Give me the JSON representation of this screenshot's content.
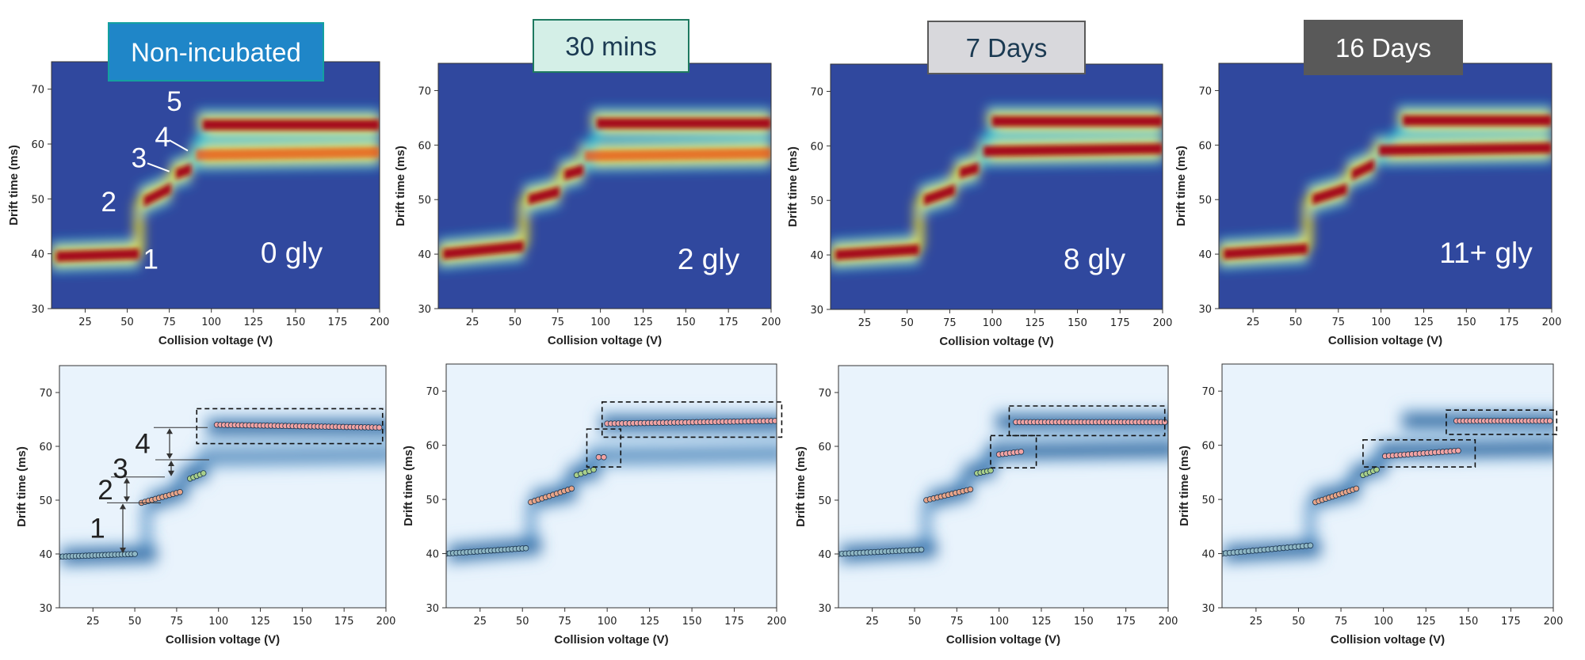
{
  "figure": {
    "colors": {
      "heat_background": "#30489e",
      "heat_mid": "#1ec8dc",
      "heat_high": "#f0e632",
      "heat_peak": "#a50f1e",
      "blue_background": "#e9f3fc",
      "blue_dark": "#0a4b8c",
      "dashed_box": "#111111"
    }
  },
  "chart_data": [
    {
      "type": "heatmap",
      "row": "top",
      "title": "Non-incubated",
      "title_style": {
        "fill": "#1f86c8",
        "stroke": "#14a0a0",
        "text": "#ffffff"
      },
      "glycan_label": "0 gly",
      "xlabel": "Collision voltage (V)",
      "ylabel": "Drift time (ms)",
      "xlim": [
        5,
        200
      ],
      "ylim": [
        30,
        75
      ],
      "xticks": [
        "25",
        "50",
        "75",
        "100",
        "125",
        "150",
        "175",
        "200"
      ],
      "yticks": [
        "30",
        "40",
        "50",
        "60",
        "70"
      ],
      "ytick_values": [
        30,
        40,
        50,
        60,
        70
      ],
      "xtick_values": [
        25,
        50,
        75,
        100,
        125,
        150,
        175,
        200
      ],
      "features": [
        {
          "state": 1,
          "x_start": 5,
          "x_end": 57,
          "drift_start": 39.5,
          "drift_end": 40.0
        },
        {
          "state": 2,
          "x_start": 57,
          "x_end": 76,
          "drift_start": 49.5,
          "drift_end": 52.0
        },
        {
          "state": 3,
          "x_start": 76,
          "x_end": 88,
          "drift_start": 54.5,
          "drift_end": 55.5
        },
        {
          "state": 4,
          "x_start": 88,
          "x_end": 200,
          "drift_start": 58.0,
          "drift_end": 58.5,
          "intensity": 0.7
        },
        {
          "state": 5,
          "x_start": 92,
          "x_end": 200,
          "drift_start": 63.5,
          "drift_end": 63.5
        }
      ],
      "annotations": [
        {
          "text": "1",
          "x": 64,
          "y": 39
        },
        {
          "text": "2",
          "x": 39,
          "y": 49.5
        },
        {
          "text": "3",
          "x": 57,
          "y": 57.5
        },
        {
          "text": "4",
          "x": 71,
          "y": 61.3
        },
        {
          "text": "5",
          "x": 78,
          "y": 67.8
        }
      ]
    },
    {
      "type": "heatmap",
      "row": "top",
      "title": "30 mins",
      "title_style": {
        "fill": "#d4efe7",
        "stroke": "#1e7a60",
        "text": "#1b3a52"
      },
      "glycan_label": "2 gly",
      "xlabel": "Collision voltage (V)",
      "ylabel": "Drift time (ms)",
      "xlim": [
        5,
        200
      ],
      "ylim": [
        30,
        75
      ],
      "xticks": [
        "25",
        "50",
        "75",
        "100",
        "125",
        "150",
        "175",
        "200"
      ],
      "yticks": [
        "30",
        "40",
        "50",
        "60",
        "70"
      ],
      "ytick_values": [
        30,
        40,
        50,
        60,
        70
      ],
      "xtick_values": [
        25,
        50,
        75,
        100,
        125,
        150,
        175,
        200
      ],
      "features": [
        {
          "state": 1,
          "x_start": 5,
          "x_end": 55,
          "drift_start": 40.0,
          "drift_end": 41.5
        },
        {
          "state": 2,
          "x_start": 55,
          "x_end": 76,
          "drift_start": 50.0,
          "drift_end": 51.5
        },
        {
          "state": 3,
          "x_start": 76,
          "x_end": 90,
          "drift_start": 54.5,
          "drift_end": 55.5
        },
        {
          "state": 4,
          "x_start": 88,
          "x_end": 200,
          "drift_start": 58.0,
          "drift_end": 58.5,
          "intensity": 0.65
        },
        {
          "state": 5,
          "x_start": 95,
          "x_end": 200,
          "drift_start": 64.0,
          "drift_end": 64.0
        }
      ]
    },
    {
      "type": "heatmap",
      "row": "top",
      "title": "7 Days",
      "title_style": {
        "fill": "#d8d8dc",
        "stroke": "#5a5a5a",
        "text": "#1b3a52"
      },
      "glycan_label": "8 gly",
      "xlabel": "Collision voltage (V)",
      "ylabel": "Drift time (ms)",
      "xlim": [
        5,
        200
      ],
      "ylim": [
        30,
        75
      ],
      "xticks": [
        "25",
        "50",
        "75",
        "100",
        "125",
        "150",
        "175",
        "200"
      ],
      "yticks": [
        "30",
        "40",
        "50",
        "60",
        "70"
      ],
      "ytick_values": [
        30,
        40,
        50,
        60,
        70
      ],
      "xtick_values": [
        25,
        50,
        75,
        100,
        125,
        150,
        175,
        200
      ],
      "features": [
        {
          "state": 1,
          "x_start": 5,
          "x_end": 57,
          "drift_start": 40.0,
          "drift_end": 41.0
        },
        {
          "state": 2,
          "x_start": 57,
          "x_end": 78,
          "drift_start": 50.0,
          "drift_end": 52.0
        },
        {
          "state": 3,
          "x_start": 78,
          "x_end": 92,
          "drift_start": 55.0,
          "drift_end": 56.0
        },
        {
          "state": 4,
          "x_start": 92,
          "x_end": 200,
          "drift_start": 59.0,
          "drift_end": 59.5
        },
        {
          "state": 5,
          "x_start": 97,
          "x_end": 200,
          "drift_start": 64.5,
          "drift_end": 64.5
        }
      ]
    },
    {
      "type": "heatmap",
      "row": "top",
      "title": "16 Days",
      "title_style": {
        "fill": "#595959",
        "stroke": "#595959",
        "text": "#ffffff"
      },
      "glycan_label": "11+ gly",
      "xlabel": "Collision voltage (V)",
      "ylabel": "Drift time (ms)",
      "xlim": [
        5,
        200
      ],
      "ylim": [
        30,
        75
      ],
      "xticks": [
        "25",
        "50",
        "75",
        "100",
        "125",
        "150",
        "175",
        "200"
      ],
      "yticks": [
        "30",
        "40",
        "50",
        "60",
        "70"
      ],
      "ytick_values": [
        30,
        40,
        50,
        60,
        70
      ],
      "xtick_values": [
        25,
        50,
        75,
        100,
        125,
        150,
        175,
        200
      ],
      "features": [
        {
          "state": 1,
          "x_start": 5,
          "x_end": 57,
          "drift_start": 40.0,
          "drift_end": 41.0
        },
        {
          "state": 2,
          "x_start": 57,
          "x_end": 80,
          "drift_start": 50.0,
          "drift_end": 52.0
        },
        {
          "state": 3,
          "x_start": 80,
          "x_end": 96,
          "drift_start": 54.5,
          "drift_end": 56.5
        },
        {
          "state": 4,
          "x_start": 96,
          "x_end": 200,
          "drift_start": 59.0,
          "drift_end": 59.5
        },
        {
          "state": 5,
          "x_start": 110,
          "x_end": 200,
          "drift_start": 64.5,
          "drift_end": 64.5,
          "intensity": 0.85
        }
      ]
    },
    {
      "type": "scatter",
      "row": "bottom",
      "xlabel": "Collision voltage (V)",
      "ylabel": "Drift time (ms)",
      "xlim": [
        5,
        200
      ],
      "ylim": [
        30,
        75
      ],
      "xticks": [
        "25",
        "50",
        "75",
        "100",
        "125",
        "150",
        "175",
        "200"
      ],
      "yticks": [
        "30",
        "40",
        "50",
        "60",
        "70"
      ],
      "ytick_values": [
        30,
        40,
        50,
        60,
        70
      ],
      "xtick_values": [
        25,
        50,
        75,
        100,
        125,
        150,
        175,
        200
      ],
      "series": [
        {
          "name": "state 1",
          "color": "#8fb7c4",
          "x_start": 5,
          "x_end": 50,
          "drift_start": 39.5,
          "drift_end": 40.0,
          "count": 24
        },
        {
          "name": "state 2",
          "color": "#e8a488",
          "x_start": 54,
          "x_end": 77,
          "drift_start": 49.5,
          "drift_end": 51.5,
          "count": 12
        },
        {
          "name": "state 3",
          "color": "#a8cf8a",
          "x_start": 83,
          "x_end": 91,
          "drift_start": 54.0,
          "drift_end": 55.0,
          "count": 5
        },
        {
          "name": "state 4",
          "color": "#f2a3a3",
          "x_start": 99,
          "x_end": 196,
          "drift_start": 64.0,
          "drift_end": 63.5,
          "count": 46
        }
      ],
      "highlight_boxes": [
        {
          "x0": 87,
          "x1": 198,
          "y0": 60.5,
          "y1": 67.0
        }
      ],
      "transitions": [
        {
          "label": "1",
          "from": 40,
          "to": 49.5,
          "x": 40
        },
        {
          "label": "2",
          "from": 49.5,
          "to": 54.3,
          "x": 43
        },
        {
          "label": "3",
          "from": 54.3,
          "to": 57.5,
          "x": 68
        },
        {
          "label": "4",
          "from": 57.5,
          "to": 63.5,
          "x": 73
        }
      ]
    },
    {
      "type": "scatter",
      "row": "bottom",
      "xlabel": "Collision voltage (V)",
      "ylabel": "Drift time (ms)",
      "xlim": [
        5,
        200
      ],
      "ylim": [
        30,
        75
      ],
      "xticks": [
        "25",
        "50",
        "75",
        "100",
        "125",
        "150",
        "175",
        "200"
      ],
      "yticks": [
        "30",
        "40",
        "50",
        "60",
        "70"
      ],
      "ytick_values": [
        30,
        40,
        50,
        60,
        70
      ],
      "xtick_values": [
        25,
        50,
        75,
        100,
        125,
        150,
        175,
        200
      ],
      "series": [
        {
          "name": "state 1",
          "color": "#8fb7c4",
          "x_start": 5,
          "x_end": 52,
          "drift_start": 40.0,
          "drift_end": 41.0,
          "count": 24
        },
        {
          "name": "state 2",
          "color": "#e8a488",
          "x_start": 55,
          "x_end": 79,
          "drift_start": 49.5,
          "drift_end": 52.0,
          "count": 12
        },
        {
          "name": "state 3",
          "color": "#a8cf8a",
          "x_start": 82,
          "x_end": 92,
          "drift_start": 54.5,
          "drift_end": 55.5,
          "count": 5
        },
        {
          "name": "state 4",
          "color": "#f2a3a3",
          "x_start": 95,
          "x_end": 98,
          "drift_start": 57.8,
          "drift_end": 57.8,
          "count": 2
        },
        {
          "name": "state 5",
          "color": "#f2a3a3",
          "x_start": 100,
          "x_end": 199,
          "drift_start": 64.0,
          "drift_end": 64.5,
          "count": 46
        }
      ],
      "highlight_boxes": [
        {
          "x0": 88,
          "x1": 108,
          "y0": 56.0,
          "y1": 63.0
        },
        {
          "x0": 97,
          "x1": 203,
          "y0": 61.5,
          "y1": 68.0
        }
      ]
    },
    {
      "type": "scatter",
      "row": "bottom",
      "xlabel": "Collision voltage (V)",
      "ylabel": "Drift time (ms)",
      "xlim": [
        5,
        200
      ],
      "ylim": [
        30,
        75
      ],
      "xticks": [
        "25",
        "50",
        "75",
        "100",
        "125",
        "150",
        "175",
        "200"
      ],
      "yticks": [
        "30",
        "40",
        "50",
        "60",
        "70"
      ],
      "ytick_values": [
        30,
        40,
        50,
        60,
        70
      ],
      "xtick_values": [
        25,
        50,
        75,
        100,
        125,
        150,
        175,
        200
      ],
      "series": [
        {
          "name": "state 1",
          "color": "#8fb7c4",
          "x_start": 5,
          "x_end": 54,
          "drift_start": 40.0,
          "drift_end": 40.8,
          "count": 24
        },
        {
          "name": "state 2",
          "color": "#e8a488",
          "x_start": 57,
          "x_end": 83,
          "drift_start": 50.0,
          "drift_end": 52.0,
          "count": 13
        },
        {
          "name": "state 3",
          "color": "#a8cf8a",
          "x_start": 87,
          "x_end": 95,
          "drift_start": 55.0,
          "drift_end": 55.5,
          "count": 5
        },
        {
          "name": "state 4",
          "color": "#f2a3a3",
          "x_start": 100,
          "x_end": 113,
          "drift_start": 58.5,
          "drift_end": 59.0,
          "count": 7
        },
        {
          "name": "state 5",
          "color": "#f2a3a3",
          "x_start": 110,
          "x_end": 198,
          "drift_start": 64.5,
          "drift_end": 64.5,
          "count": 42
        }
      ],
      "highlight_boxes": [
        {
          "x0": 95,
          "x1": 122,
          "y0": 56.0,
          "y1": 62.0
        },
        {
          "x0": 106,
          "x1": 198,
          "y0": 62.0,
          "y1": 67.5
        }
      ]
    },
    {
      "type": "scatter",
      "row": "bottom",
      "xlabel": "Collision voltage (V)",
      "ylabel": "Drift time (ms)",
      "xlim": [
        5,
        200
      ],
      "ylim": [
        30,
        75
      ],
      "xticks": [
        "25",
        "50",
        "75",
        "100",
        "125",
        "150",
        "175",
        "200"
      ],
      "yticks": [
        "30",
        "40",
        "50",
        "60",
        "70"
      ],
      "ytick_values": [
        30,
        40,
        50,
        60,
        70
      ],
      "xtick_values": [
        25,
        50,
        75,
        100,
        125,
        150,
        175,
        200
      ],
      "series": [
        {
          "name": "state 1",
          "color": "#8fb7c4",
          "x_start": 5,
          "x_end": 57,
          "drift_start": 40.0,
          "drift_end": 41.5,
          "count": 24
        },
        {
          "name": "state 2",
          "color": "#e8a488",
          "x_start": 60,
          "x_end": 84,
          "drift_start": 49.5,
          "drift_end": 52.0,
          "count": 13
        },
        {
          "name": "state 3",
          "color": "#a8cf8a",
          "x_start": 88,
          "x_end": 96,
          "drift_start": 54.5,
          "drift_end": 55.5,
          "count": 5
        },
        {
          "name": "state 4",
          "color": "#f2a3a3",
          "x_start": 101,
          "x_end": 144,
          "drift_start": 58.0,
          "drift_end": 59.0,
          "count": 20
        },
        {
          "name": "state 5",
          "color": "#f2a3a3",
          "x_start": 143,
          "x_end": 198,
          "drift_start": 64.5,
          "drift_end": 64.5,
          "count": 28
        }
      ],
      "highlight_boxes": [
        {
          "x0": 88,
          "x1": 154,
          "y0": 56.0,
          "y1": 61.0
        },
        {
          "x0": 137,
          "x1": 202,
          "y0": 62.0,
          "y1": 66.5
        }
      ]
    }
  ]
}
